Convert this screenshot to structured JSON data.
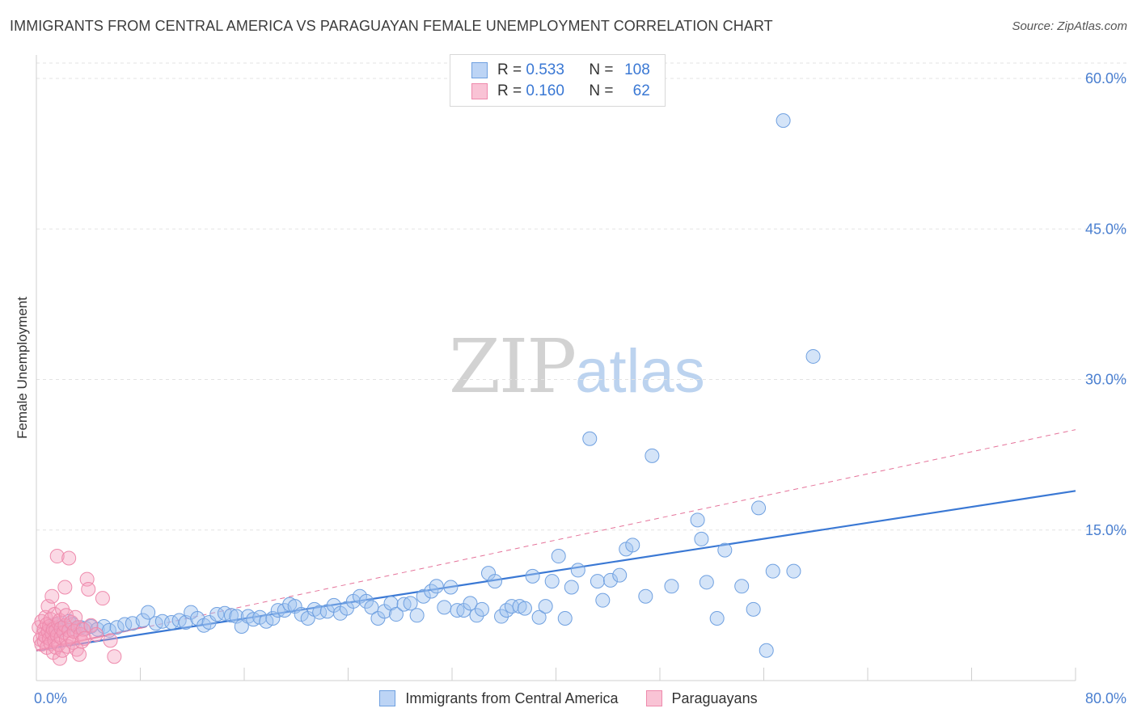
{
  "chart_data": {
    "type": "scatter",
    "title": "IMMIGRANTS FROM CENTRAL AMERICA VS PARAGUAYAN FEMALE UNEMPLOYMENT CORRELATION CHART",
    "source": "Source: ZipAtlas.com",
    "xlabel": "",
    "ylabel": "Female Unemployment",
    "xlim": [
      0,
      80
    ],
    "ylim": [
      0,
      63
    ],
    "x_tick_labels": [
      "0.0%",
      "80.0%"
    ],
    "y_ticks": [
      15,
      30,
      45,
      60
    ],
    "y_tick_labels": [
      "15.0%",
      "30.0%",
      "45.0%",
      "60.0%"
    ],
    "watermark": {
      "zip": "ZIP",
      "atlas": "atlas"
    },
    "legend": [
      {
        "name": "Immigrants from Central America",
        "r_label": "R =",
        "r": "0.533",
        "n_label": "N =",
        "n": "108",
        "color": "#6fa0e0",
        "fill": "#bcd4f5"
      },
      {
        "name": "Paraguayans",
        "r_label": "R =",
        "r": "0.160",
        "n_label": "N =",
        "n": "62",
        "color": "#ee8aac",
        "fill": "#f9c3d5"
      }
    ],
    "series": [
      {
        "name": "Immigrants from Central America",
        "color": "#6fa0e0",
        "trend": {
          "x": [
            0,
            80
          ],
          "y": [
            3.0,
            18.9
          ],
          "style": "solid",
          "color": "#3a78d4"
        },
        "points": [
          [
            1.5,
            5.6
          ],
          [
            1.8,
            5.0
          ],
          [
            2.0,
            5.3
          ],
          [
            2.5,
            5.9
          ],
          [
            3.0,
            5.1
          ],
          [
            3.4,
            5.3
          ],
          [
            3.8,
            5.2
          ],
          [
            4.2,
            5.4
          ],
          [
            4.7,
            5.1
          ],
          [
            5.2,
            5.4
          ],
          [
            5.6,
            5.0
          ],
          [
            6.2,
            5.3
          ],
          [
            6.8,
            5.6
          ],
          [
            7.4,
            5.7
          ],
          [
            8.2,
            6.0
          ],
          [
            8.6,
            6.8
          ],
          [
            9.2,
            5.7
          ],
          [
            9.7,
            5.9
          ],
          [
            10.4,
            5.8
          ],
          [
            11.0,
            6.0
          ],
          [
            11.5,
            5.8
          ],
          [
            11.9,
            6.8
          ],
          [
            12.4,
            6.2
          ],
          [
            12.9,
            5.5
          ],
          [
            13.3,
            5.8
          ],
          [
            13.9,
            6.6
          ],
          [
            14.5,
            6.7
          ],
          [
            15.0,
            6.5
          ],
          [
            15.4,
            6.4
          ],
          [
            15.8,
            5.4
          ],
          [
            16.3,
            6.4
          ],
          [
            16.7,
            6.1
          ],
          [
            17.2,
            6.3
          ],
          [
            17.7,
            5.9
          ],
          [
            18.2,
            6.2
          ],
          [
            18.6,
            7.0
          ],
          [
            19.1,
            7.0
          ],
          [
            19.5,
            7.6
          ],
          [
            19.9,
            7.4
          ],
          [
            20.4,
            6.6
          ],
          [
            20.9,
            6.2
          ],
          [
            21.4,
            7.1
          ],
          [
            21.8,
            6.8
          ],
          [
            22.4,
            6.9
          ],
          [
            22.9,
            7.5
          ],
          [
            23.4,
            6.7
          ],
          [
            23.9,
            7.2
          ],
          [
            24.4,
            7.9
          ],
          [
            24.9,
            8.4
          ],
          [
            25.4,
            7.9
          ],
          [
            25.8,
            7.3
          ],
          [
            26.3,
            6.2
          ],
          [
            26.8,
            6.9
          ],
          [
            27.3,
            7.7
          ],
          [
            27.7,
            6.6
          ],
          [
            28.3,
            7.6
          ],
          [
            28.8,
            7.7
          ],
          [
            29.3,
            6.5
          ],
          [
            29.8,
            8.4
          ],
          [
            30.4,
            8.9
          ],
          [
            30.8,
            9.4
          ],
          [
            31.4,
            7.3
          ],
          [
            31.9,
            9.3
          ],
          [
            32.4,
            7.0
          ],
          [
            32.9,
            7.0
          ],
          [
            33.4,
            7.7
          ],
          [
            33.9,
            6.5
          ],
          [
            34.3,
            7.1
          ],
          [
            34.8,
            10.7
          ],
          [
            35.3,
            9.9
          ],
          [
            35.8,
            6.4
          ],
          [
            36.2,
            7.0
          ],
          [
            36.6,
            7.4
          ],
          [
            37.2,
            7.4
          ],
          [
            37.6,
            7.2
          ],
          [
            38.2,
            10.4
          ],
          [
            38.7,
            6.3
          ],
          [
            39.2,
            7.4
          ],
          [
            39.7,
            9.9
          ],
          [
            40.2,
            12.4
          ],
          [
            40.7,
            6.2
          ],
          [
            41.2,
            9.3
          ],
          [
            41.7,
            11.0
          ],
          [
            42.6,
            24.1
          ],
          [
            43.2,
            9.9
          ],
          [
            43.6,
            8.0
          ],
          [
            44.2,
            10.0
          ],
          [
            44.9,
            10.5
          ],
          [
            45.4,
            13.1
          ],
          [
            45.9,
            13.5
          ],
          [
            46.9,
            8.4
          ],
          [
            47.4,
            22.4
          ],
          [
            48.9,
            9.4
          ],
          [
            50.9,
            16.0
          ],
          [
            51.2,
            14.1
          ],
          [
            51.6,
            9.8
          ],
          [
            52.4,
            6.2
          ],
          [
            53.0,
            13.0
          ],
          [
            54.3,
            9.4
          ],
          [
            55.2,
            7.1
          ],
          [
            55.6,
            17.2
          ],
          [
            56.2,
            3.0
          ],
          [
            56.7,
            10.9
          ],
          [
            57.5,
            55.8
          ],
          [
            58.3,
            10.9
          ],
          [
            59.8,
            32.3
          ],
          [
            2.8,
            5.6
          ],
          [
            1.2,
            4.8
          ]
        ]
      },
      {
        "name": "Paraguayans",
        "color": "#ee8aac",
        "trend": {
          "x": [
            0,
            80
          ],
          "y": [
            3.0,
            25.0
          ],
          "style": "dashed",
          "color": "#e5739a"
        },
        "points": [
          [
            0.2,
            5.3
          ],
          [
            0.3,
            4.1
          ],
          [
            0.4,
            5.9
          ],
          [
            0.4,
            3.6
          ],
          [
            0.5,
            4.6
          ],
          [
            0.6,
            5.1
          ],
          [
            0.6,
            3.9
          ],
          [
            0.7,
            6.3
          ],
          [
            0.7,
            4.4
          ],
          [
            0.8,
            5.6
          ],
          [
            0.8,
            3.3
          ],
          [
            0.9,
            4.9
          ],
          [
            0.9,
            7.4
          ],
          [
            1.0,
            4.2
          ],
          [
            1.0,
            5.4
          ],
          [
            1.1,
            3.7
          ],
          [
            1.1,
            6.1
          ],
          [
            1.2,
            4.7
          ],
          [
            1.2,
            8.4
          ],
          [
            1.3,
            5.1
          ],
          [
            1.3,
            2.8
          ],
          [
            1.4,
            4.0
          ],
          [
            1.4,
            6.6
          ],
          [
            1.5,
            3.3
          ],
          [
            1.5,
            5.0
          ],
          [
            1.6,
            12.4
          ],
          [
            1.6,
            4.5
          ],
          [
            1.7,
            5.7
          ],
          [
            1.7,
            3.6
          ],
          [
            1.8,
            2.2
          ],
          [
            1.8,
            6.0
          ],
          [
            1.9,
            4.3
          ],
          [
            1.9,
            5.2
          ],
          [
            2.0,
            7.1
          ],
          [
            2.0,
            3.0
          ],
          [
            2.1,
            4.8
          ],
          [
            2.2,
            5.5
          ],
          [
            2.2,
            9.3
          ],
          [
            2.3,
            4.1
          ],
          [
            2.3,
            6.5
          ],
          [
            2.4,
            3.4
          ],
          [
            2.5,
            12.2
          ],
          [
            2.5,
            5.0
          ],
          [
            2.6,
            4.4
          ],
          [
            2.7,
            5.8
          ],
          [
            2.8,
            3.8
          ],
          [
            2.9,
            4.9
          ],
          [
            3.0,
            6.3
          ],
          [
            3.1,
            3.1
          ],
          [
            3.2,
            5.3
          ],
          [
            3.3,
            2.6
          ],
          [
            3.4,
            4.6
          ],
          [
            3.5,
            3.9
          ],
          [
            3.6,
            5.1
          ],
          [
            3.7,
            4.2
          ],
          [
            3.9,
            10.1
          ],
          [
            4.0,
            9.1
          ],
          [
            4.2,
            5.5
          ],
          [
            4.6,
            4.6
          ],
          [
            5.1,
            8.2
          ],
          [
            5.7,
            4.0
          ],
          [
            6.0,
            2.4
          ]
        ]
      }
    ]
  }
}
